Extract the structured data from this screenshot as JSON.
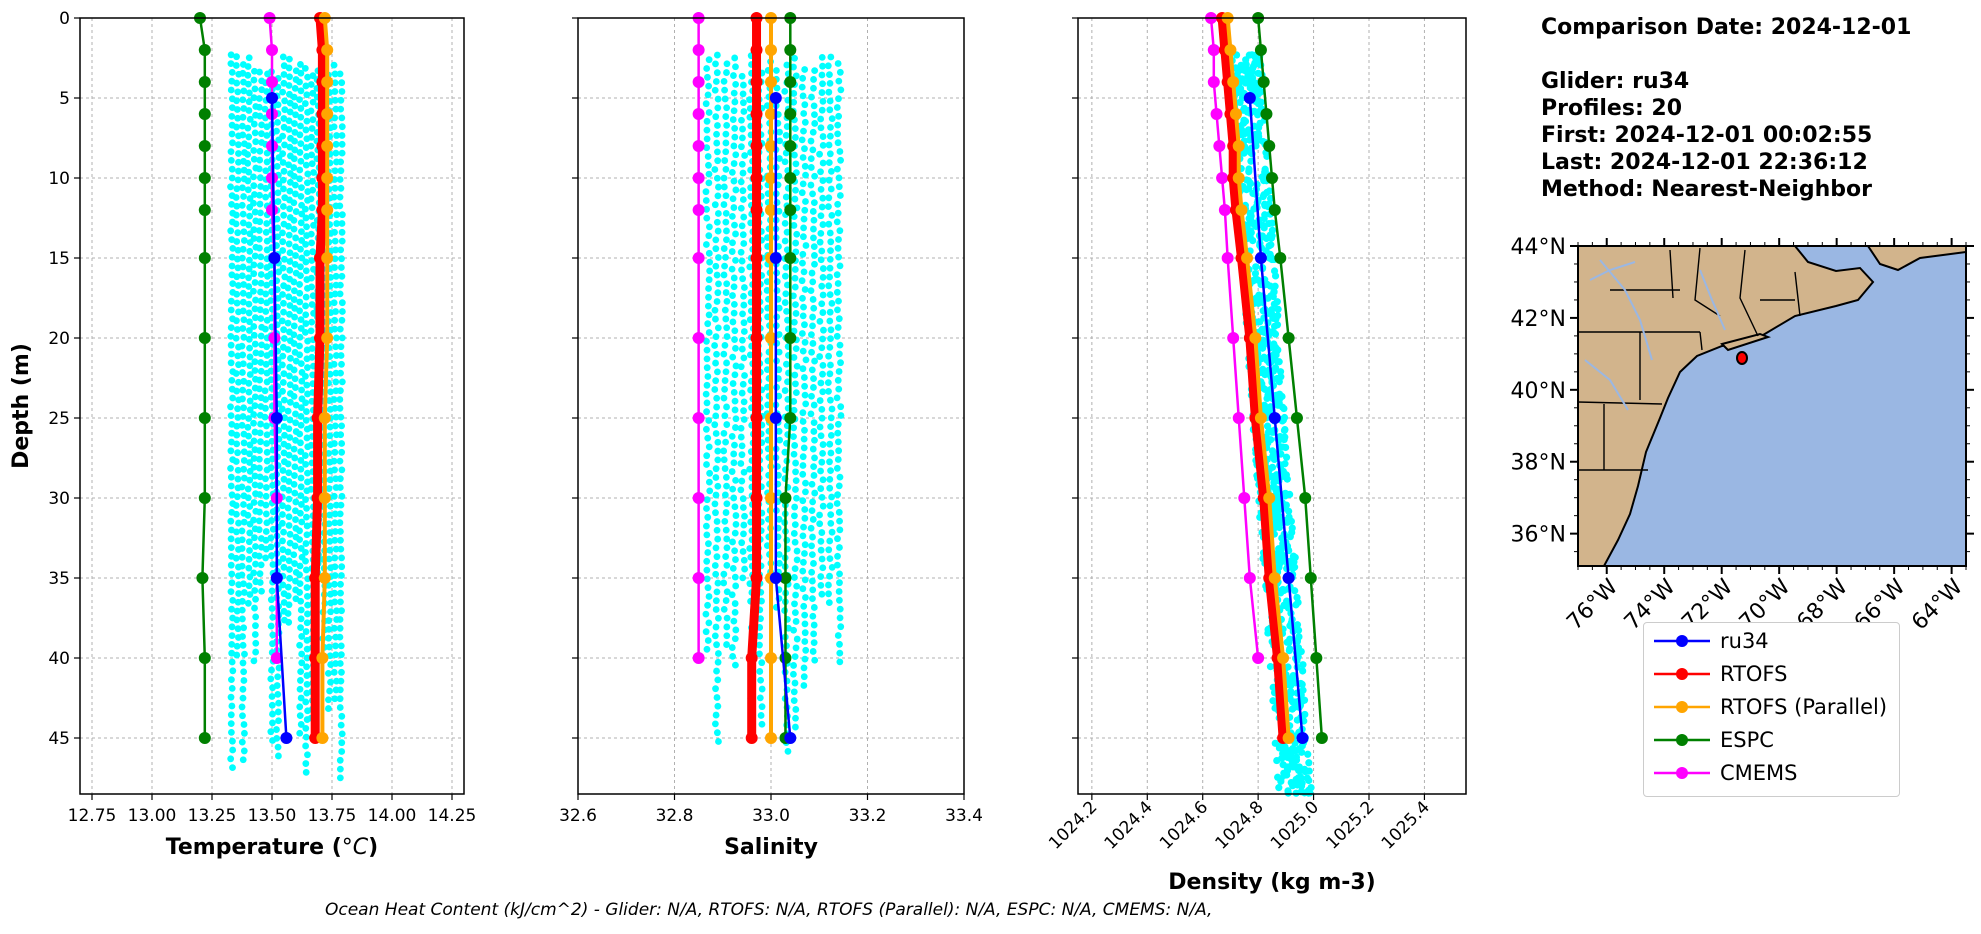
{
  "chart_data": [
    {
      "type": "line",
      "xlabel": "Temperature (°C)",
      "xlabel_main": "Temperature (",
      "xlabel_unit": "°C",
      "xlabel_close": ")",
      "ylabel": "Depth (m)",
      "xlim": [
        12.7,
        14.3
      ],
      "ylim": [
        48.5,
        0
      ],
      "xticks": [
        "12.75",
        "13.00",
        "13.25",
        "13.50",
        "13.75",
        "14.00",
        "14.25"
      ],
      "xtick_values": [
        12.75,
        13.0,
        13.25,
        13.5,
        13.75,
        14.0,
        14.25
      ],
      "yticks": [
        "0",
        "5",
        "10",
        "15",
        "20",
        "25",
        "30",
        "35",
        "40",
        "45"
      ],
      "ytick_values": [
        0,
        5,
        10,
        15,
        20,
        25,
        30,
        35,
        40,
        45
      ],
      "grid": true,
      "glider_cloud": {
        "x_min": 13.32,
        "x_max": 13.8,
        "depth_min": 2.3,
        "depth_max": 48.5,
        "columns": 20
      },
      "series": [
        {
          "name": "ru34",
          "color": "#0000ff",
          "depth": [
            5,
            15,
            25,
            35,
            45
          ],
          "values": [
            13.5,
            13.51,
            13.52,
            13.52,
            13.56
          ]
        },
        {
          "name": "RTOFS",
          "color": "#ff0000",
          "depth": [
            0,
            2,
            4,
            6,
            8,
            10,
            12,
            15,
            20,
            25,
            30,
            35,
            40,
            45
          ],
          "values": [
            13.7,
            13.71,
            13.71,
            13.71,
            13.71,
            13.71,
            13.71,
            13.7,
            13.7,
            13.69,
            13.69,
            13.68,
            13.68,
            13.68
          ]
        },
        {
          "name": "RTOFS (Parallel)",
          "color": "#ffa500",
          "depth": [
            0,
            2,
            4,
            6,
            8,
            10,
            12,
            15,
            20,
            25,
            30,
            35,
            40,
            45
          ],
          "values": [
            13.72,
            13.73,
            13.73,
            13.73,
            13.73,
            13.73,
            13.73,
            13.73,
            13.73,
            13.72,
            13.72,
            13.72,
            13.71,
            13.71
          ]
        },
        {
          "name": "ESPC",
          "color": "#008000",
          "depth": [
            0,
            2,
            4,
            6,
            8,
            10,
            12,
            15,
            20,
            25,
            30,
            35,
            40,
            45
          ],
          "values": [
            13.2,
            13.22,
            13.22,
            13.22,
            13.22,
            13.22,
            13.22,
            13.22,
            13.22,
            13.22,
            13.22,
            13.21,
            13.22,
            13.22
          ]
        },
        {
          "name": "CMEMS",
          "color": "#ff00ff",
          "depth": [
            0,
            2,
            4,
            6,
            8,
            10,
            12,
            15,
            20,
            25,
            30,
            35,
            40
          ],
          "values": [
            13.49,
            13.5,
            13.5,
            13.5,
            13.5,
            13.5,
            13.5,
            13.51,
            13.51,
            13.51,
            13.52,
            13.52,
            13.52
          ]
        }
      ]
    },
    {
      "type": "line",
      "xlabel": "Salinity",
      "xlim": [
        32.6,
        33.4
      ],
      "ylim": [
        48.5,
        0
      ],
      "xticks": [
        "32.6",
        "32.8",
        "33.0",
        "33.2",
        "33.4"
      ],
      "xtick_values": [
        32.6,
        32.8,
        33.0,
        33.2,
        33.4
      ],
      "yticks": [],
      "ytick_values": [
        0,
        5,
        10,
        15,
        20,
        25,
        30,
        35,
        40,
        45
      ],
      "grid": true,
      "glider_cloud": {
        "x_min": 32.86,
        "x_max": 33.15,
        "depth_min": 2.3,
        "depth_max": 48.5,
        "columns": 16
      },
      "series": [
        {
          "name": "ru34",
          "color": "#0000ff",
          "depth": [
            5,
            15,
            25,
            35,
            45
          ],
          "values": [
            33.01,
            33.01,
            33.01,
            33.01,
            33.04
          ]
        },
        {
          "name": "RTOFS",
          "color": "#ff0000",
          "depth": [
            0,
            2,
            4,
            6,
            8,
            10,
            12,
            15,
            20,
            25,
            30,
            35,
            40,
            45
          ],
          "values": [
            32.97,
            32.97,
            32.97,
            32.97,
            32.97,
            32.97,
            32.97,
            32.97,
            32.97,
            32.97,
            32.97,
            32.97,
            32.96,
            32.96
          ]
        },
        {
          "name": "RTOFS (Parallel)",
          "color": "#ffa500",
          "depth": [
            0,
            2,
            4,
            6,
            8,
            10,
            12,
            15,
            20,
            25,
            30,
            35,
            40,
            45
          ],
          "values": [
            33.0,
            33.0,
            33.0,
            33.0,
            33.0,
            33.0,
            33.0,
            33.0,
            33.0,
            33.0,
            33.0,
            33.0,
            33.0,
            33.0
          ]
        },
        {
          "name": "ESPC",
          "color": "#008000",
          "depth": [
            0,
            2,
            4,
            6,
            8,
            10,
            12,
            15,
            20,
            25,
            30,
            35,
            40,
            45
          ],
          "values": [
            33.04,
            33.04,
            33.04,
            33.04,
            33.04,
            33.04,
            33.04,
            33.04,
            33.04,
            33.04,
            33.03,
            33.03,
            33.03,
            33.03
          ]
        },
        {
          "name": "CMEMS",
          "color": "#ff00ff",
          "depth": [
            0,
            2,
            4,
            6,
            8,
            10,
            12,
            15,
            20,
            25,
            30,
            35,
            40
          ],
          "values": [
            32.85,
            32.85,
            32.85,
            32.85,
            32.85,
            32.85,
            32.85,
            32.85,
            32.85,
            32.85,
            32.85,
            32.85,
            32.85
          ]
        }
      ]
    },
    {
      "type": "line",
      "xlabel": "Density (kg m-3)",
      "xlim": [
        1024.15,
        1025.55
      ],
      "ylim": [
        48.5,
        0
      ],
      "xticks": [
        "1024.2",
        "1024.4",
        "1024.6",
        "1024.8",
        "1025.0",
        "1025.2",
        "1025.4"
      ],
      "xtick_values": [
        1024.2,
        1024.4,
        1024.6,
        1024.8,
        1025.0,
        1025.2,
        1025.4
      ],
      "xtick_rotation": 45,
      "yticks": [],
      "ytick_values": [
        0,
        5,
        10,
        15,
        20,
        25,
        30,
        35,
        40,
        45
      ],
      "grid": true,
      "glider_cloud": {
        "type": "band",
        "x_top": 1024.74,
        "x_bottom": 1024.92,
        "width": 0.12,
        "depth_min": 2.3,
        "depth_max": 48.5
      },
      "series": [
        {
          "name": "ru34",
          "color": "#0000ff",
          "depth": [
            5,
            15,
            25,
            35,
            45
          ],
          "values": [
            1024.77,
            1024.81,
            1024.86,
            1024.91,
            1024.96
          ]
        },
        {
          "name": "RTOFS",
          "color": "#ff0000",
          "depth": [
            0,
            2,
            4,
            6,
            8,
            10,
            12,
            15,
            20,
            25,
            30,
            35,
            40,
            45
          ],
          "values": [
            1024.67,
            1024.68,
            1024.69,
            1024.7,
            1024.71,
            1024.71,
            1024.72,
            1024.74,
            1024.77,
            1024.79,
            1024.82,
            1024.84,
            1024.87,
            1024.89
          ]
        },
        {
          "name": "RTOFS (Parallel)",
          "color": "#ffa500",
          "depth": [
            0,
            2,
            4,
            6,
            8,
            10,
            12,
            15,
            20,
            25,
            30,
            35,
            40,
            45
          ],
          "values": [
            1024.69,
            1024.7,
            1024.71,
            1024.72,
            1024.73,
            1024.73,
            1024.74,
            1024.76,
            1024.79,
            1024.81,
            1024.84,
            1024.86,
            1024.89,
            1024.91
          ]
        },
        {
          "name": "ESPC",
          "color": "#008000",
          "depth": [
            0,
            2,
            4,
            6,
            8,
            10,
            12,
            15,
            20,
            25,
            30,
            35,
            40,
            45
          ],
          "values": [
            1024.8,
            1024.81,
            1024.82,
            1024.83,
            1024.84,
            1024.85,
            1024.86,
            1024.88,
            1024.91,
            1024.94,
            1024.97,
            1024.99,
            1025.01,
            1025.03
          ]
        },
        {
          "name": "CMEMS",
          "color": "#ff00ff",
          "depth": [
            0,
            2,
            4,
            6,
            8,
            10,
            12,
            15,
            20,
            25,
            30,
            35,
            40
          ],
          "values": [
            1024.63,
            1024.64,
            1024.64,
            1024.65,
            1024.66,
            1024.67,
            1024.68,
            1024.69,
            1024.71,
            1024.73,
            1024.75,
            1024.77,
            1024.8
          ]
        }
      ]
    }
  ],
  "info": {
    "comparison_date": "Comparison Date: 2024-12-01",
    "glider": "Glider: ru34",
    "profiles": "Profiles: 20",
    "first": "First: 2024-12-01 00:02:55",
    "last": "Last: 2024-12-01 22:36:12",
    "method": "Method: Nearest-Neighbor"
  },
  "map": {
    "lon_range": [
      -77.0,
      -63.5
    ],
    "lat_range": [
      35.1,
      44.0
    ],
    "lat_ticks": [
      "44°N",
      "42°N",
      "40°N",
      "38°N",
      "36°N"
    ],
    "lat_values": [
      44,
      42,
      40,
      38,
      36
    ],
    "lon_ticks": [
      "76°W",
      "74°W",
      "72°W",
      "70°W",
      "68°W",
      "66°W",
      "64°W"
    ],
    "lon_values": [
      -76,
      -74,
      -72,
      -70,
      -68,
      -66,
      -64
    ],
    "land_color": "#d2b48c",
    "ocean_color": "#9ab7e3",
    "glider_marker": {
      "lon": -71.4,
      "lat": 41.0,
      "color": "#ff0000"
    }
  },
  "legend": {
    "items": [
      {
        "name": "ru34",
        "color": "#0000ff"
      },
      {
        "name": "RTOFS",
        "color": "#ff0000"
      },
      {
        "name": "RTOFS (Parallel)",
        "color": "#ffa500"
      },
      {
        "name": "ESPC",
        "color": "#008000"
      },
      {
        "name": "CMEMS",
        "color": "#ff00ff"
      }
    ]
  },
  "footer": {
    "text": "Ocean Heat Content (kJ/cm^2) - Glider: N/A,  RTOFS: N/A,  RTOFS (Parallel): N/A,  ESPC: N/A,  CMEMS: N/A,"
  },
  "colors": {
    "glider_cloud": "#00ffff",
    "grid": "#b0b0b0"
  }
}
